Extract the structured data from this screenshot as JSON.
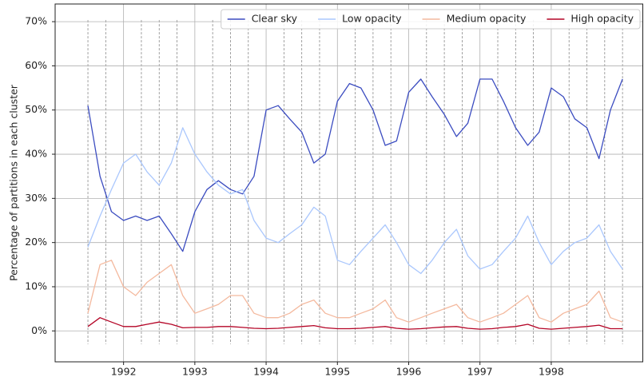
{
  "chart_data": {
    "type": "line",
    "y_label": "Percentage of partitions in each cluster",
    "x": [
      1991.5,
      1991.67,
      1991.83,
      1992,
      1992.17,
      1992.33,
      1992.5,
      1992.67,
      1992.83,
      1993,
      1993.17,
      1993.33,
      1993.5,
      1993.67,
      1993.83,
      1994,
      1994.17,
      1994.33,
      1994.5,
      1994.67,
      1994.83,
      1995,
      1995.17,
      1995.33,
      1995.5,
      1995.67,
      1995.83,
      1996,
      1996.17,
      1996.33,
      1996.5,
      1996.67,
      1996.83,
      1997,
      1997.17,
      1997.33,
      1997.5,
      1997.67,
      1997.83,
      1998,
      1998.17,
      1998.33,
      1998.5,
      1998.67,
      1998.83,
      1999
    ],
    "series": [
      {
        "name": "Clear sky",
        "color": "#3b4cc0",
        "values": [
          51,
          35,
          27,
          25,
          26,
          25,
          26,
          22,
          18,
          27,
          32,
          34,
          32,
          31,
          35,
          50,
          51,
          48,
          45,
          38,
          40,
          52,
          56,
          55,
          50,
          42,
          43,
          54,
          57,
          53,
          49,
          44,
          47,
          57,
          57,
          52,
          46,
          42,
          45,
          55,
          53,
          48,
          46,
          39,
          50,
          57
        ]
      },
      {
        "name": "Low opacity",
        "color": "#aac7fd",
        "values": [
          19,
          26,
          32,
          38,
          40,
          36,
          33,
          38,
          46,
          40,
          36,
          33,
          31,
          32,
          25,
          21,
          20,
          22,
          24,
          28,
          26,
          16,
          15,
          18,
          21,
          24,
          20,
          15,
          13,
          16,
          20,
          23,
          17,
          14,
          15,
          18,
          21,
          26,
          20,
          15,
          18,
          20,
          21,
          24,
          18,
          14
        ]
      },
      {
        "name": "Medium opacity",
        "color": "#f4b99e",
        "values": [
          4,
          15,
          16,
          10,
          8,
          11,
          13,
          15,
          8,
          4,
          5,
          6,
          8,
          8,
          4,
          3,
          3,
          4,
          6,
          7,
          4,
          3,
          3,
          4,
          5,
          7,
          3,
          2,
          3,
          4,
          5,
          6,
          3,
          2,
          3,
          4,
          6,
          8,
          3,
          2,
          4,
          5,
          6,
          9,
          3,
          2
        ]
      },
      {
        "name": "High opacity",
        "color": "#b40426",
        "values": [
          1,
          3,
          2,
          1,
          1,
          1.5,
          2,
          1.5,
          0.7,
          0.8,
          0.8,
          1,
          1,
          0.8,
          0.6,
          0.5,
          0.6,
          0.8,
          1,
          1.2,
          0.7,
          0.5,
          0.5,
          0.6,
          0.8,
          1,
          0.6,
          0.4,
          0.5,
          0.7,
          0.9,
          1,
          0.6,
          0.4,
          0.5,
          0.8,
          1,
          1.5,
          0.6,
          0.4,
          0.6,
          0.8,
          1,
          1.3,
          0.5,
          0.5
        ]
      }
    ],
    "xlim": [
      1991.04,
      1999.29
    ],
    "xticks": [
      1992,
      1993,
      1994,
      1995,
      1996,
      1997,
      1998
    ],
    "xminorticks": [
      1991.5,
      1991.75,
      1992.25,
      1992.5,
      1992.75,
      1993.25,
      1993.5,
      1993.75,
      1994.25,
      1994.5,
      1994.75,
      1995.25,
      1995.5,
      1995.75,
      1996.25,
      1996.5,
      1996.75,
      1997.25,
      1997.5,
      1997.75,
      1998.25,
      1998.5,
      1998.75,
      1999
    ],
    "ylim": [
      -7,
      74
    ],
    "yticks": [
      {
        "value": 0,
        "label": "0%"
      },
      {
        "value": 10,
        "label": "10%"
      },
      {
        "value": 20,
        "label": "20%"
      },
      {
        "value": 30,
        "label": "30%"
      },
      {
        "value": 40,
        "label": "40%"
      },
      {
        "value": 50,
        "label": "50%"
      },
      {
        "value": 60,
        "label": "60%"
      },
      {
        "value": 70,
        "label": "70%"
      }
    ],
    "grid": true,
    "legend": "upper right"
  }
}
